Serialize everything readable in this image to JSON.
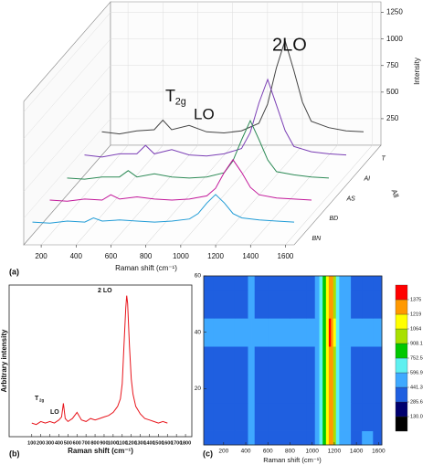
{
  "chart_data": [
    {
      "type": "waterfall",
      "label": "(a)",
      "xlabel": "Raman shift (cm⁻¹)",
      "zlabel": "Intensity",
      "depth_label": "All",
      "depth_categories": [
        "BN",
        "BD",
        "AS",
        "AI",
        "T"
      ],
      "xlim": [
        100,
        1650
      ],
      "xticks": [
        200,
        400,
        600,
        800,
        1000,
        1200,
        1400,
        1600
      ],
      "zlim": [
        0,
        1350
      ],
      "zticks": [
        250,
        500,
        750,
        1000,
        1250
      ],
      "annotations": [
        {
          "text": "T",
          "sub": "2g"
        },
        {
          "text": "LO"
        },
        {
          "text": "2LO"
        }
      ],
      "x": [
        100,
        200,
        300,
        400,
        450,
        500,
        600,
        700,
        800,
        900,
        1000,
        1050,
        1100,
        1150,
        1200,
        1250,
        1300,
        1400,
        1500,
        1600
      ],
      "series": [
        {
          "color": "#1f9bd6",
          "values": [
            120,
            110,
            130,
            120,
            160,
            130,
            140,
            130,
            120,
            130,
            150,
            200,
            300,
            380,
            300,
            200,
            160,
            140,
            130,
            120
          ]
        },
        {
          "color": "#c2189a",
          "values": [
            140,
            130,
            150,
            140,
            190,
            150,
            170,
            150,
            140,
            150,
            180,
            250,
            400,
            520,
            400,
            260,
            190,
            160,
            150,
            140
          ]
        },
        {
          "color": "#2e8b57",
          "values": [
            160,
            150,
            170,
            170,
            230,
            170,
            200,
            170,
            160,
            170,
            210,
            320,
            520,
            700,
            520,
            330,
            220,
            190,
            170,
            160
          ]
        },
        {
          "color": "#7b3fb5",
          "values": [
            190,
            170,
            200,
            200,
            280,
            200,
            240,
            190,
            180,
            200,
            250,
            400,
            680,
            900,
            660,
            420,
            270,
            220,
            200,
            190
          ]
        },
        {
          "color": "#444444",
          "values": [
            220,
            200,
            230,
            240,
            330,
            240,
            280,
            220,
            210,
            230,
            300,
            480,
            820,
            1080,
            800,
            500,
            320,
            260,
            230,
            220
          ]
        }
      ]
    },
    {
      "type": "line",
      "label": "(b)",
      "xlabel": "Raman shift (cm⁻¹)",
      "ylabel": "Arbitrary intensity",
      "xlim": [
        -150,
        1870
      ],
      "xticks": [
        100,
        200,
        300,
        400,
        500,
        600,
        700,
        800,
        900,
        1000,
        1100,
        1200,
        1300,
        1400,
        1500,
        1600,
        1700,
        1800
      ],
      "ylim": [
        0,
        100
      ],
      "annotations": [
        {
          "text": "T",
          "sub": "2g"
        },
        {
          "text": "LO"
        },
        {
          "text": "2 LO"
        }
      ],
      "x": [
        100,
        150,
        200,
        250,
        300,
        350,
        400,
        430,
        450,
        470,
        500,
        550,
        600,
        650,
        700,
        750,
        800,
        850,
        900,
        950,
        1000,
        1050,
        1080,
        1100,
        1120,
        1140,
        1150,
        1160,
        1180,
        1200,
        1220,
        1250,
        1300,
        1350,
        1400,
        1450,
        1500,
        1550,
        1600
      ],
      "series": [
        {
          "color": "#e8141b",
          "values": [
            9,
            8,
            10,
            9,
            10,
            9,
            11,
            13,
            22,
            12,
            10,
            12,
            16,
            11,
            10,
            12,
            11,
            12,
            13,
            14,
            16,
            20,
            25,
            35,
            60,
            85,
            93,
            88,
            60,
            38,
            28,
            20,
            15,
            12,
            11,
            10,
            9,
            10,
            9
          ]
        }
      ]
    },
    {
      "type": "contour",
      "label": "(c)",
      "xlabel": "Raman shift (cm⁻¹)",
      "xlim": [
        20,
        1630
      ],
      "xticks": [
        200,
        400,
        600,
        800,
        1000,
        1200,
        1400,
        1600
      ],
      "ylim": [
        0,
        60
      ],
      "yticks": [
        20,
        40,
        60
      ],
      "x": [
        20,
        200,
        400,
        440,
        460,
        500,
        700,
        900,
        1000,
        1050,
        1080,
        1110,
        1140,
        1160,
        1180,
        1200,
        1230,
        1260,
        1300,
        1400,
        1500,
        1600
      ],
      "y": [
        0,
        10,
        20,
        30,
        40,
        50,
        60
      ],
      "z": [
        [
          340,
          330,
          350,
          470,
          460,
          350,
          330,
          340,
          350,
          450,
          610,
          790,
          1100,
          1290,
          1230,
          990,
          690,
          490,
          450,
          410,
          470,
          350
        ],
        [
          350,
          340,
          360,
          480,
          470,
          360,
          340,
          350,
          360,
          460,
          620,
          800,
          1120,
          1300,
          1240,
          1000,
          700,
          500,
          460,
          420,
          380,
          360
        ],
        [
          350,
          340,
          360,
          480,
          470,
          360,
          340,
          350,
          360,
          460,
          620,
          800,
          1120,
          1320,
          1250,
          1000,
          700,
          500,
          460,
          420,
          380,
          360
        ],
        [
          350,
          340,
          360,
          480,
          470,
          360,
          340,
          350,
          360,
          460,
          620,
          800,
          1120,
          1300,
          1240,
          1000,
          700,
          500,
          460,
          420,
          380,
          360
        ],
        [
          470,
          460,
          470,
          520,
          520,
          470,
          460,
          460,
          470,
          500,
          650,
          850,
          1200,
          1400,
          1300,
          1080,
          750,
          540,
          480,
          450,
          470,
          460
        ],
        [
          350,
          340,
          360,
          470,
          470,
          360,
          340,
          350,
          360,
          460,
          620,
          800,
          1110,
          1310,
          1240,
          1000,
          700,
          500,
          460,
          420,
          380,
          360
        ],
        [
          350,
          340,
          360,
          480,
          470,
          360,
          340,
          350,
          360,
          460,
          620,
          800,
          1120,
          1300,
          1240,
          1000,
          700,
          500,
          460,
          420,
          380,
          360
        ]
      ],
      "levels": [
        {
          "value": 130,
          "label": "130.0"
        },
        285.6,
        441.3,
        596.9,
        752.5,
        908.1,
        1064,
        1219,
        1375
      ],
      "colors": [
        "#000000",
        "#00006e",
        "#1f5fe0",
        "#3fa9ff",
        "#5ef0f0",
        "#00c800",
        "#a8e000",
        "#ffff00",
        "#ff9900",
        "#ff0000"
      ]
    }
  ]
}
